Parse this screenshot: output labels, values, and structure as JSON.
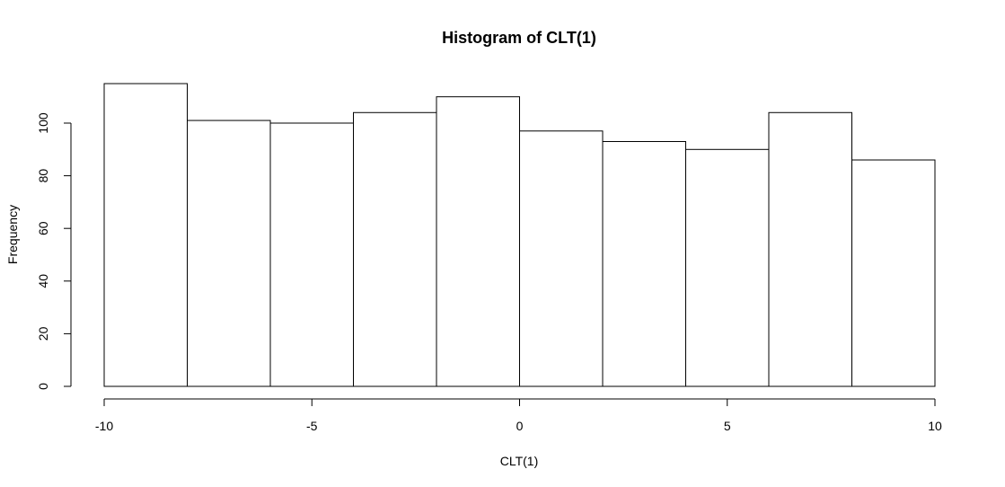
{
  "chart_data": {
    "type": "bar",
    "title": "Histogram of CLT(1)",
    "xlabel": "CLT(1)",
    "ylabel": "Frequency",
    "bins": [
      {
        "start": -10,
        "end": -8,
        "value": 115
      },
      {
        "start": -8,
        "end": -6,
        "value": 101
      },
      {
        "start": -6,
        "end": -4,
        "value": 100
      },
      {
        "start": -4,
        "end": -2,
        "value": 104
      },
      {
        "start": -2,
        "end": 0,
        "value": 110
      },
      {
        "start": 0,
        "end": 2,
        "value": 97
      },
      {
        "start": 2,
        "end": 4,
        "value": 93
      },
      {
        "start": 4,
        "end": 6,
        "value": 90
      },
      {
        "start": 6,
        "end": 8,
        "value": 104
      },
      {
        "start": 8,
        "end": 10,
        "value": 86
      }
    ],
    "xlim": [
      -10,
      10
    ],
    "ylim": [
      0,
      120
    ],
    "x_ticks": [
      -10,
      -5,
      0,
      5,
      10
    ],
    "x_tick_labels": [
      "-10",
      "-5",
      "0",
      "5",
      "10"
    ],
    "y_ticks": [
      0,
      20,
      40,
      60,
      80,
      100
    ],
    "y_tick_labels": [
      "0",
      "20",
      "40",
      "60",
      "80",
      "100"
    ],
    "grid": false,
    "legend": "none",
    "colors": {
      "bar_fill": "#ffffff",
      "bar_stroke": "#000000",
      "background": "#ffffff"
    }
  }
}
